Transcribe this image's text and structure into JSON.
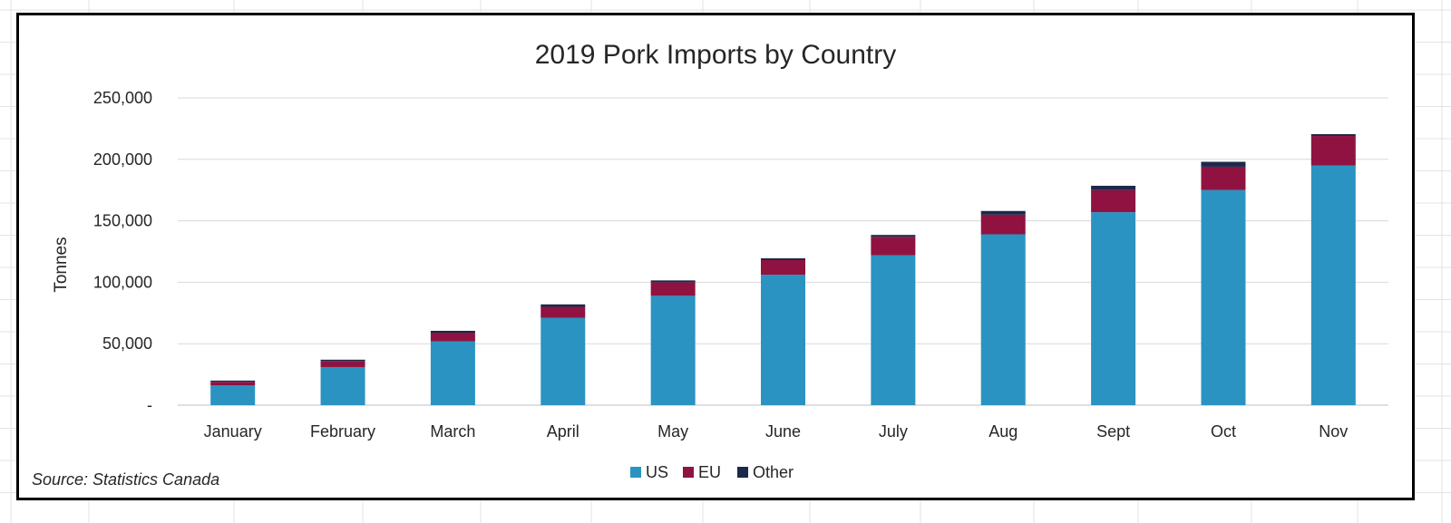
{
  "chart_data": {
    "type": "bar",
    "stacked": true,
    "title": "2019 Pork Imports by Country",
    "xlabel": "",
    "ylabel": "Tonnes",
    "categories": [
      "January",
      "February",
      "March",
      "April",
      "May",
      "June",
      "July",
      "Aug",
      "Sept",
      "Oct",
      "Nov"
    ],
    "series": [
      {
        "name": "US",
        "color": "#2B93C1",
        "values": [
          16000,
          31000,
          52000,
          71000,
          89000,
          106000,
          122000,
          139000,
          157000,
          175000,
          195000
        ]
      },
      {
        "name": "EU",
        "color": "#8F1241",
        "values": [
          3000,
          5000,
          7000,
          9000,
          11000,
          12000,
          15000,
          16000,
          18000,
          19000,
          24000
        ]
      },
      {
        "name": "Other",
        "color": "#1B2A4A",
        "values": [
          1000,
          1000,
          1500,
          2000,
          1500,
          1500,
          1500,
          3000,
          3500,
          4000,
          1500
        ]
      }
    ],
    "ylim": [
      0,
      250000
    ],
    "yticks": [
      0,
      50000,
      100000,
      150000,
      200000,
      250000
    ],
    "ytick_labels": [
      "-",
      "50,000",
      "100,000",
      "150,000",
      "200,000",
      "250,000"
    ],
    "grid": true,
    "legend_position": "bottom",
    "source_note": "Source: Statistics Canada"
  }
}
